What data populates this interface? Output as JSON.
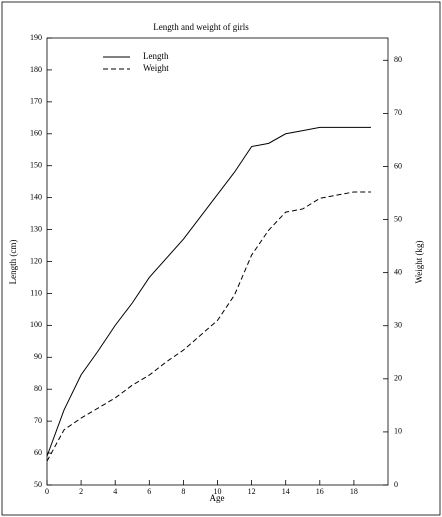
{
  "chart_data": {
    "type": "line",
    "title": "Length and weight of girls",
    "x_label": "Age",
    "y_label": "Length (cm)",
    "y2_label": "Weight (kg)",
    "x": [
      0,
      1,
      2,
      3,
      4,
      5,
      6,
      7,
      8,
      9,
      10,
      11,
      12,
      13,
      14,
      15,
      16,
      17,
      18,
      19
    ],
    "series": [
      {
        "name": "Length",
        "color": "#000000",
        "dashed": false,
        "values": [
          59,
          73.5,
          84.5,
          92,
          100,
          107,
          115,
          121,
          127,
          134,
          141,
          148,
          156,
          157,
          160,
          161,
          162,
          162,
          162,
          162
        ]
      },
      {
        "name": "Weight",
        "color": "#000000",
        "dashed": true,
        "axis": "y2",
        "values": [
          4.5,
          10.4,
          12.6,
          14.5,
          16.4,
          18.8,
          20.7,
          23.2,
          25.4,
          28.2,
          31,
          35.8,
          43.3,
          48,
          51.4,
          52,
          54,
          54.6,
          55.2,
          55.2
        ]
      }
    ],
    "xlim": [
      0,
      20
    ],
    "xticks": [
      0,
      2,
      4,
      6,
      8,
      10,
      12,
      14,
      16,
      18
    ],
    "ylim": [
      50,
      190
    ],
    "yticks": [
      50,
      60,
      70,
      80,
      90,
      100,
      110,
      120,
      130,
      140,
      150,
      160,
      170,
      180,
      190
    ],
    "y2lim": [
      0,
      84.2
    ],
    "y2ticks": [
      0,
      10,
      20,
      30,
      40,
      50,
      60,
      70,
      80
    ],
    "legend": "top-left"
  }
}
